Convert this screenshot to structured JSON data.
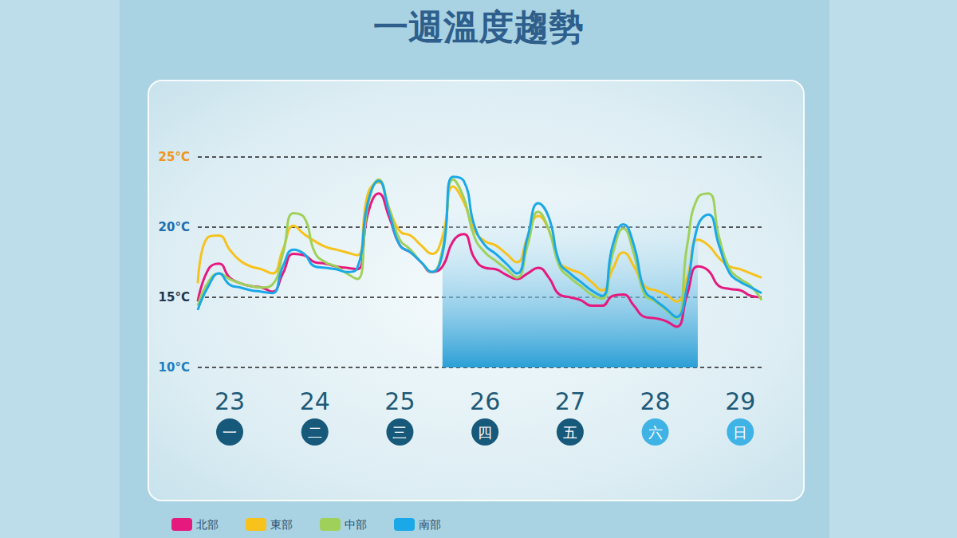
{
  "chart_data": {
    "type": "line",
    "title": "一週溫度趨勢",
    "categories": [
      null,
      null,
      null,
      "23",
      null,
      null,
      null,
      null,
      null,
      null,
      null,
      "24",
      null,
      null,
      null,
      null,
      null,
      null,
      null,
      "25",
      null,
      null,
      null,
      null,
      null,
      null,
      null,
      "26",
      null,
      null,
      null,
      null,
      null,
      null,
      null,
      "27",
      null,
      null,
      null,
      null,
      null,
      null,
      null,
      "28",
      null,
      null,
      null,
      null,
      null,
      null,
      null,
      "29",
      null,
      null
    ],
    "weekdays": [
      "一",
      "二",
      "三",
      "四",
      "五",
      "六",
      "日"
    ],
    "series": [
      {
        "name": "北部",
        "color": "#e5197e",
        "values": [
          14.7,
          17.0,
          17.4,
          16.4,
          16.0,
          15.8,
          15.7,
          15.4,
          16.7,
          18.1,
          18.0,
          17.5,
          17.4,
          17.2,
          17.1,
          17.0,
          21.0,
          22.4,
          20.7,
          18.7,
          18.2,
          17.5,
          16.8,
          17.2,
          19.0,
          19.5,
          17.8,
          17.1,
          17.0,
          16.6,
          16.3,
          16.7,
          17.1,
          16.4,
          15.2,
          15.0,
          14.8,
          14.4,
          14.4,
          15.1,
          15.2,
          14.4,
          13.6,
          13.5,
          13.3,
          12.9,
          15.2,
          17.2,
          16.9,
          15.8,
          15.6,
          15.5,
          15.1,
          15.0
        ]
      },
      {
        "name": "東部",
        "color": "#f7c21b",
        "values": [
          16.0,
          19.3,
          19.4,
          18.4,
          17.6,
          17.2,
          17.0,
          16.7,
          18.4,
          20.1,
          19.5,
          19.0,
          18.6,
          18.4,
          18.2,
          18.0,
          22.4,
          23.2,
          21.3,
          19.7,
          19.4,
          18.7,
          18.1,
          19.3,
          22.9,
          21.8,
          19.8,
          19.0,
          18.7,
          18.1,
          17.5,
          19.3,
          20.8,
          19.8,
          17.5,
          17.0,
          16.7,
          16.1,
          15.5,
          17.0,
          18.2,
          17.2,
          15.8,
          15.5,
          15.2,
          14.7,
          16.4,
          19.1,
          18.7,
          17.8,
          17.2,
          17.0,
          16.7,
          16.4
        ]
      },
      {
        "name": "中部",
        "color": "#9fd15a",
        "values": [
          14.4,
          16.1,
          16.7,
          16.3,
          16.0,
          15.8,
          15.7,
          15.9,
          18.1,
          21.0,
          20.7,
          18.2,
          17.5,
          17.2,
          16.7,
          16.3,
          21.6,
          23.4,
          21.3,
          19.1,
          18.4,
          17.5,
          16.8,
          18.4,
          23.4,
          22.1,
          19.3,
          18.2,
          17.6,
          17.0,
          16.4,
          18.7,
          21.1,
          19.8,
          17.2,
          16.4,
          15.8,
          15.2,
          14.9,
          18.1,
          19.9,
          18.1,
          15.2,
          14.7,
          14.1,
          13.5,
          18.7,
          22.1,
          22.4,
          19.3,
          17.0,
          16.3,
          15.8,
          14.8
        ]
      },
      {
        "name": "南部",
        "color": "#1aa8e8",
        "values": [
          14.1,
          15.8,
          16.7,
          15.9,
          15.7,
          15.5,
          15.4,
          15.3,
          17.2,
          18.4,
          18.1,
          17.2,
          17.1,
          17.0,
          16.8,
          17.1,
          21.8,
          23.3,
          21.0,
          18.7,
          18.2,
          17.5,
          16.8,
          18.1,
          23.6,
          23.3,
          20.1,
          18.7,
          18.1,
          17.4,
          16.7,
          19.3,
          21.7,
          20.7,
          17.5,
          16.7,
          16.1,
          15.5,
          15.1,
          18.7,
          20.2,
          18.7,
          15.5,
          14.8,
          14.2,
          13.6,
          15.8,
          20.1,
          20.9,
          18.7,
          16.7,
          16.1,
          15.7,
          15.3
        ]
      }
    ],
    "shaded_band": {
      "x_range": [
        23,
        47
      ],
      "y_range": [
        10,
        23.7
      ]
    },
    "ylim": [
      10,
      25
    ],
    "yticks": [
      {
        "value": 10,
        "label": "10°C"
      },
      {
        "value": 15,
        "label": "15°C"
      },
      {
        "value": 20,
        "label": "20°C"
      },
      {
        "value": 25,
        "label": "25°C"
      }
    ],
    "grid": true,
    "legend": "bottom-left"
  }
}
